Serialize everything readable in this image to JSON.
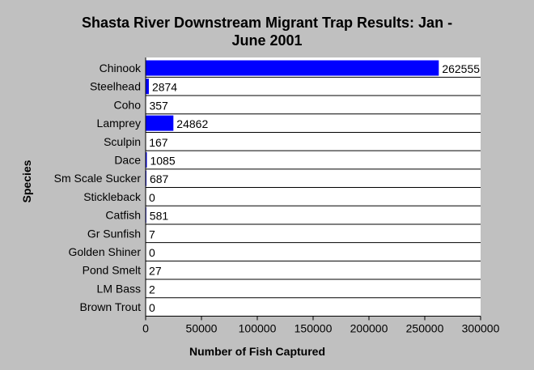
{
  "chart_data": {
    "type": "bar",
    "orientation": "horizontal",
    "title_lines": [
      "Shasta River Downstream Migrant Trap Results: Jan -",
      "June 2001"
    ],
    "xlabel": "Number of Fish Captured",
    "ylabel": "Species",
    "categories": [
      "Chinook",
      "Steelhead",
      "Coho",
      "Lamprey",
      "Sculpin",
      "Dace",
      "Sm Scale Sucker",
      "Stickleback",
      "Catfish",
      "Gr Sunfish",
      "Golden Shiner",
      "Pond Smelt",
      "LM Bass",
      "Brown Trout"
    ],
    "values": [
      262555,
      2874,
      357,
      24862,
      167,
      1085,
      687,
      0,
      581,
      7,
      0,
      27,
      2,
      0
    ],
    "value_labels": [
      "262555",
      "2874",
      "357",
      "24862",
      "167",
      "1085",
      "687",
      "0",
      "581",
      "7",
      "0",
      "27",
      "2",
      "0"
    ],
    "xlim": [
      0,
      300000
    ],
    "xticks": [
      0,
      50000,
      100000,
      150000,
      200000,
      250000,
      300000
    ],
    "xtick_labels": [
      "0",
      "50000",
      "100000",
      "150000",
      "200000",
      "250000",
      "300000"
    ],
    "grid": "horizontal",
    "bar_color": "#0000ff",
    "plot_background": "#ffffff",
    "page_background": "#c0c0c0"
  }
}
